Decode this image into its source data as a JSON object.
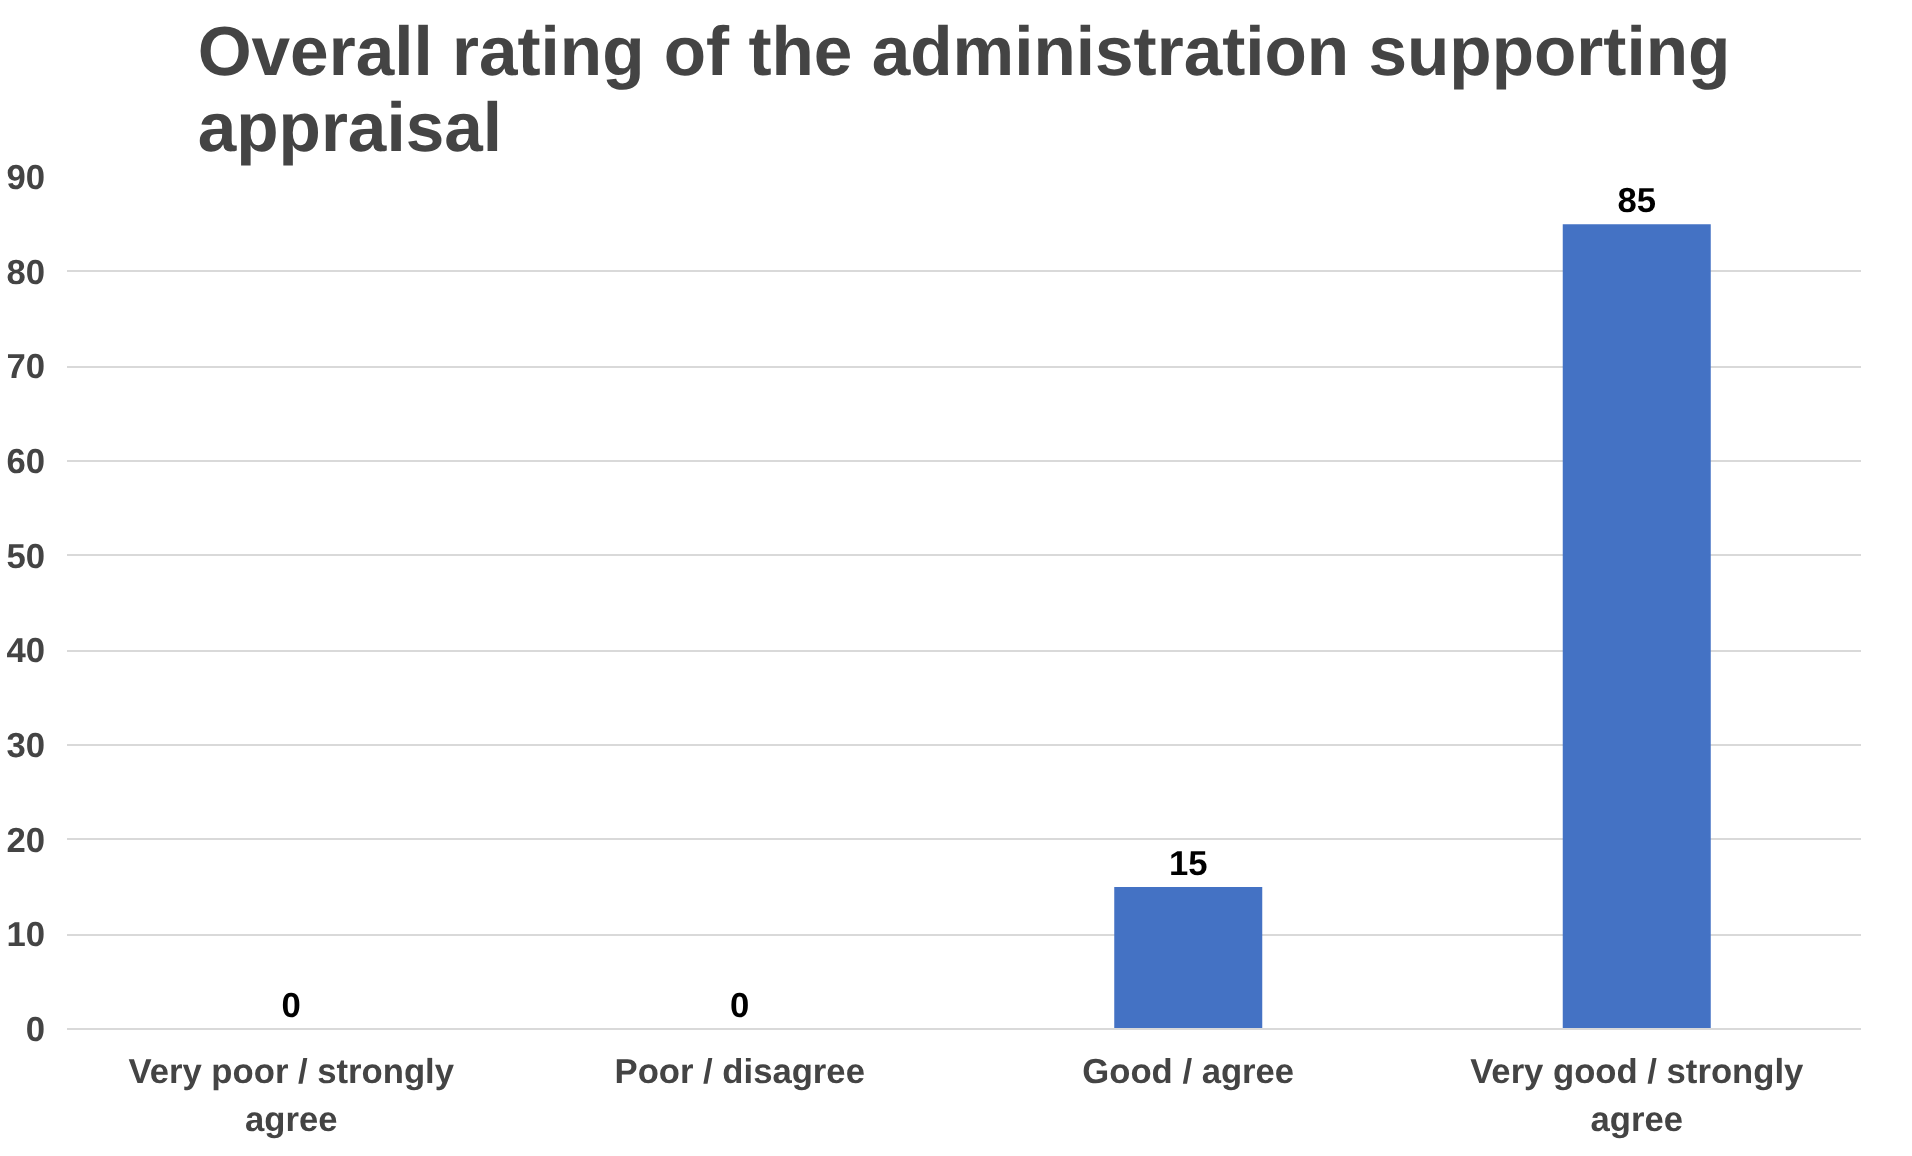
{
  "chart_data": {
    "type": "bar",
    "title": "Overall rating of the administration supporting appraisal",
    "categories": [
      "Very poor / strongly agree",
      "Poor / disagree",
      "Good / agree",
      "Very good / strongly agree"
    ],
    "values": [
      0,
      0,
      15,
      85
    ],
    "color": "#4472c4",
    "ylim": [
      0,
      90
    ],
    "yticks": [
      0,
      10,
      20,
      30,
      40,
      50,
      60,
      70,
      80,
      90
    ],
    "grid": "y",
    "data_labels": true
  }
}
